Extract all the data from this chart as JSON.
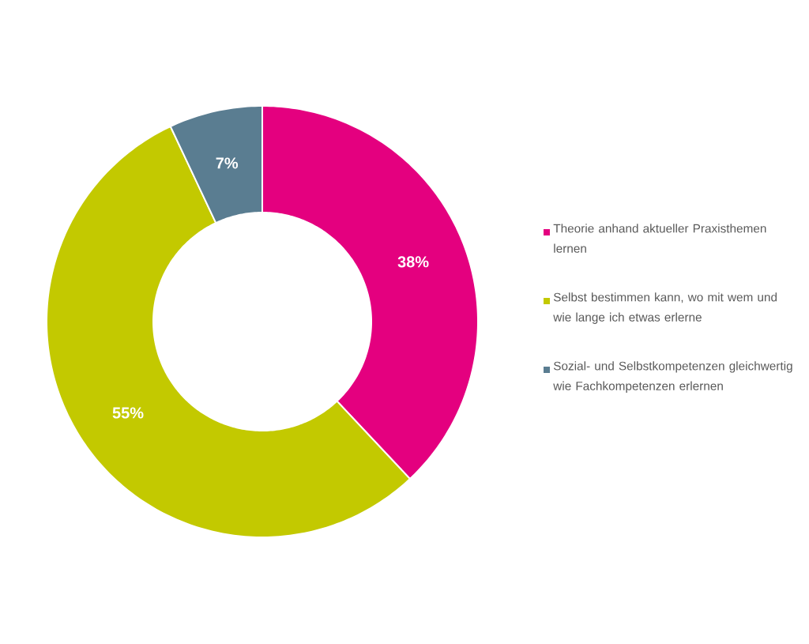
{
  "chart_data": {
    "type": "donut",
    "categories": [
      "Theorie anhand aktueller Praxisthemen lernen",
      "Selbst bestimmen kann, wo mit wem und wie lange ich etwas erlerne",
      "Sozial- und Selbstkompetenzen gleichwertig wie Fachkompetenzen erlernen"
    ],
    "values": [
      38,
      55,
      7
    ],
    "colors": [
      "#e4007f",
      "#c3c900",
      "#5a7d91"
    ],
    "value_labels": [
      "38%",
      "55%",
      "7%"
    ],
    "legend": "right"
  }
}
